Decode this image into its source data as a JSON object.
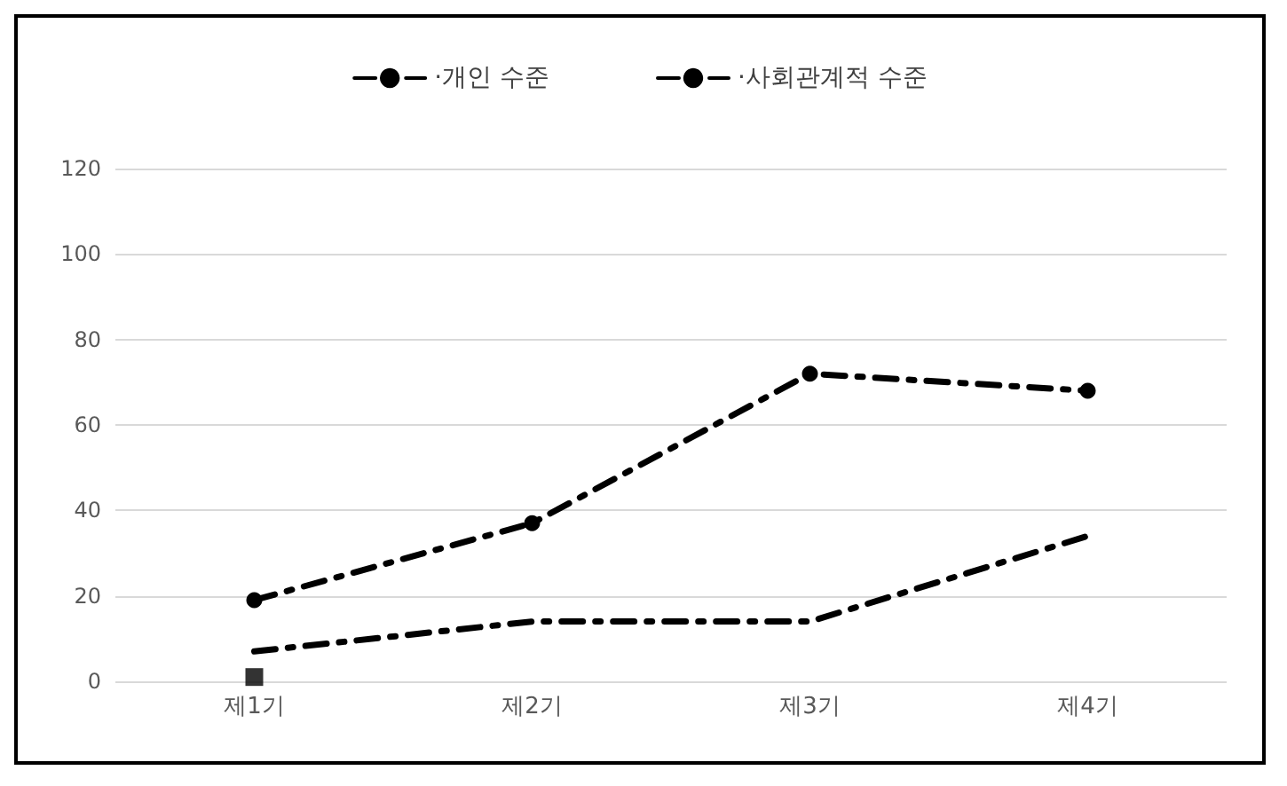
{
  "chart_data": {
    "type": "line",
    "categories": [
      "제1기",
      "제2기",
      "제3기",
      "제4기"
    ],
    "series": [
      {
        "name": "·개인 수준",
        "color": "#000000",
        "values": [
          19,
          37,
          72,
          68
        ],
        "marker": "circle",
        "line_style": "dashed"
      },
      {
        "name": "·사회관계적 수준",
        "color": "#000000",
        "values": [
          7,
          14,
          14,
          34
        ],
        "marker": "none",
        "line_style": "dashed"
      },
      {
        "type": "scatter",
        "color": "#000000",
        "values": [
          1,
          null,
          null,
          null
        ],
        "marker": "square"
      }
    ],
    "ylim": [
      0,
      120
    ],
    "yticks": [
      0,
      20,
      40,
      60,
      80,
      100,
      120
    ],
    "grid": "y",
    "legend": "top"
  }
}
